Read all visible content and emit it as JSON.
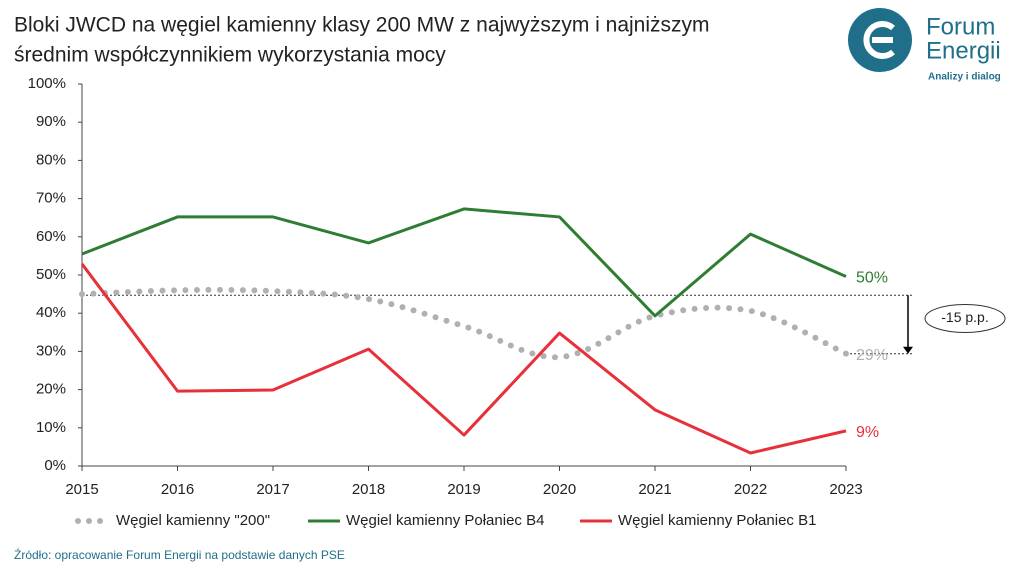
{
  "chart_data": {
    "type": "line",
    "title": [
      "Bloki JWCD na węgiel kamienny klasy 200 MW z najwyższym i najniższym",
      "średnim współczynnikiem wykorzystania mocy"
    ],
    "x": [
      2015,
      2016,
      2017,
      2018,
      2019,
      2020,
      2021,
      2022,
      2023
    ],
    "xlim": [
      2015,
      2023
    ],
    "xticks": [
      2015,
      2016,
      2017,
      2018,
      2019,
      2020,
      2021,
      2022,
      2023
    ],
    "ylim": [
      0,
      100
    ],
    "yticks": [
      {
        "value": 0,
        "label": "0%"
      },
      {
        "value": 10,
        "label": "10%"
      },
      {
        "value": 20,
        "label": "20%"
      },
      {
        "value": 30,
        "label": "30%"
      },
      {
        "value": 40,
        "label": "40%"
      },
      {
        "value": 50,
        "label": "50%"
      },
      {
        "value": 60,
        "label": "60%"
      },
      {
        "value": 70,
        "label": "70%"
      },
      {
        "value": 80,
        "label": "80%"
      },
      {
        "value": 90,
        "label": "90%"
      },
      {
        "value": 100,
        "label": "100%"
      }
    ],
    "series": [
      {
        "name": "Węgiel kamienny \"200\"",
        "color": "#b0b0b0",
        "style": "dotted",
        "values": [
          45,
          46,
          45.8,
          43.7,
          36.6,
          28.5,
          39.3,
          40.6,
          29.4
        ],
        "end_label": "29%"
      },
      {
        "name": "Węgiel kamienny Połaniec B4",
        "color": "#2e7d32",
        "style": "solid",
        "values": [
          55.5,
          65.2,
          65.2,
          58.4,
          67.3,
          65.2,
          39.3,
          60.7,
          49.6
        ],
        "end_label": "50%"
      },
      {
        "name": "Węgiel kamienny Połaniec B1",
        "color": "#e8303a",
        "style": "solid",
        "values": [
          52.9,
          19.6,
          19.9,
          30.6,
          8.1,
          34.8,
          14.7,
          3.4,
          9.2
        ],
        "end_label": "9%"
      }
    ],
    "annotation": {
      "text": "-15 p.p.",
      "from": 44.7,
      "to": 29.4
    },
    "source": "Źródło: opracowanie Forum Energii na podstawie danych PSE",
    "logo": {
      "line1": "Forum",
      "line2": "Energii",
      "tagline": "Analizy i dialog"
    }
  }
}
